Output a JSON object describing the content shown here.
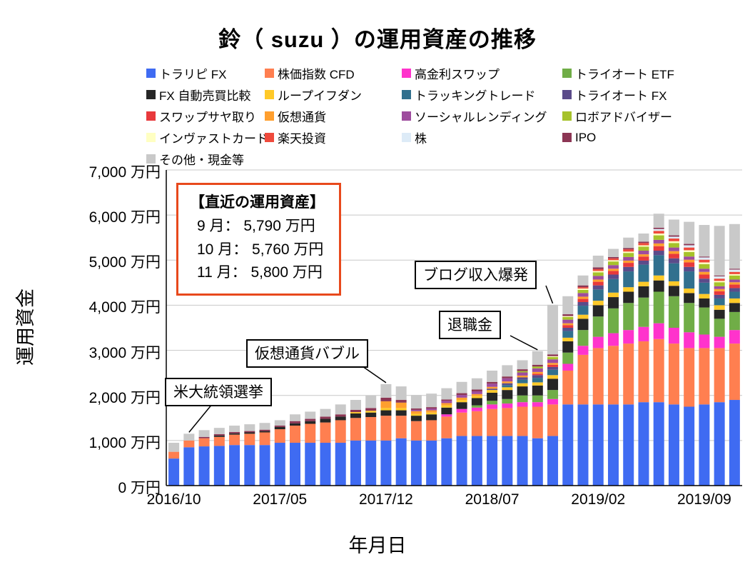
{
  "page": {
    "title": "鈴（ suzu ）の運用資産の推移"
  },
  "chart_data": {
    "type": "bar",
    "stacked": true,
    "title": "鈴（ suzu ）の運用資産の推移",
    "xlabel": "年月日",
    "ylabel": "運用資金",
    "ylim": [
      0,
      7000
    ],
    "ytick_step": 1000,
    "ytick_labels": [
      "0 万円",
      "1,000 万円",
      "2,000 万円",
      "3,000 万円",
      "4,000 万円",
      "5,000 万円",
      "6,000 万円",
      "7,000 万円"
    ],
    "xtick_labels": [
      "2016/10",
      "2017/05",
      "2017/12",
      "2018/07",
      "2019/02",
      "2019/09"
    ],
    "xtick_indices": [
      0,
      7,
      14,
      21,
      28,
      35
    ],
    "grid": true,
    "legend_position": "top",
    "categories": [
      "2016/10",
      "2016/11",
      "2016/12",
      "2017/01",
      "2017/02",
      "2017/03",
      "2017/04",
      "2017/05",
      "2017/06",
      "2017/07",
      "2017/08",
      "2017/09",
      "2017/10",
      "2017/11",
      "2017/12",
      "2018/01",
      "2018/02",
      "2018/03",
      "2018/04",
      "2018/05",
      "2018/06",
      "2018/07",
      "2018/08",
      "2018/09",
      "2018/10",
      "2018/11",
      "2018/12",
      "2019/01",
      "2019/02",
      "2019/03",
      "2019/04",
      "2019/05",
      "2019/06",
      "2019/07",
      "2019/08",
      "2019/09",
      "2019/10",
      "2019/11"
    ],
    "series": [
      {
        "name": "トラリピ FX",
        "color": "#3F6BF2",
        "values": [
          600,
          850,
          870,
          880,
          900,
          900,
          900,
          950,
          950,
          950,
          950,
          950,
          1000,
          1000,
          1000,
          1050,
          1000,
          1000,
          1050,
          1100,
          1100,
          1100,
          1100,
          1100,
          1050,
          1100,
          1800,
          1800,
          1800,
          1800,
          1800,
          1850,
          1850,
          1800,
          1750,
          1800,
          1850,
          1900
        ]
      },
      {
        "name": "株価指数 CFD",
        "color": "#FF7F50",
        "values": [
          150,
          150,
          180,
          200,
          230,
          250,
          280,
          300,
          380,
          420,
          450,
          500,
          500,
          520,
          550,
          500,
          430,
          450,
          480,
          520,
          550,
          600,
          620,
          650,
          700,
          700,
          750,
          1100,
          1250,
          1300,
          1350,
          1350,
          1400,
          1350,
          1300,
          1250,
          1200,
          1250
        ]
      },
      {
        "name": "高金利スワップ",
        "color": "#FF33CC",
        "values": [
          0,
          0,
          0,
          0,
          0,
          0,
          0,
          0,
          0,
          0,
          0,
          0,
          0,
          0,
          0,
          0,
          0,
          0,
          50,
          80,
          80,
          100,
          100,
          100,
          100,
          120,
          150,
          200,
          250,
          280,
          300,
          320,
          350,
          350,
          350,
          300,
          250,
          300
        ]
      },
      {
        "name": "トライオート ETF",
        "color": "#70AD47",
        "values": [
          0,
          0,
          0,
          0,
          0,
          0,
          0,
          0,
          0,
          0,
          0,
          0,
          0,
          0,
          0,
          0,
          0,
          0,
          0,
          0,
          50,
          80,
          100,
          150,
          150,
          200,
          250,
          350,
          450,
          550,
          600,
          650,
          700,
          700,
          650,
          600,
          400,
          400
        ]
      },
      {
        "name": "FX 自動売買比較",
        "color": "#262626",
        "values": [
          0,
          0,
          0,
          30,
          30,
          30,
          30,
          50,
          50,
          60,
          80,
          80,
          100,
          100,
          120,
          120,
          120,
          130,
          150,
          150,
          160,
          180,
          200,
          200,
          220,
          250,
          250,
          250,
          250,
          250,
          250,
          250,
          250,
          230,
          220,
          200,
          200,
          200
        ]
      },
      {
        "name": "ループイフダン",
        "color": "#FFC928",
        "values": [
          0,
          0,
          0,
          0,
          0,
          0,
          0,
          0,
          0,
          0,
          0,
          0,
          30,
          40,
          50,
          50,
          40,
          40,
          50,
          50,
          50,
          60,
          60,
          70,
          70,
          80,
          80,
          90,
          100,
          100,
          100,
          100,
          110,
          100,
          100,
          100,
          100,
          100
        ]
      },
      {
        "name": "トラッキングトレード",
        "color": "#31708E",
        "values": [
          0,
          0,
          0,
          0,
          0,
          0,
          0,
          0,
          0,
          0,
          0,
          0,
          0,
          0,
          0,
          0,
          0,
          0,
          0,
          0,
          0,
          0,
          50,
          80,
          100,
          120,
          150,
          200,
          250,
          300,
          350,
          380,
          450,
          400,
          380,
          250,
          150,
          150
        ]
      },
      {
        "name": "トライオート FX",
        "color": "#5B4B8A",
        "values": [
          0,
          0,
          0,
          0,
          0,
          0,
          0,
          0,
          0,
          0,
          0,
          0,
          0,
          0,
          0,
          0,
          0,
          0,
          0,
          0,
          0,
          30,
          40,
          50,
          60,
          60,
          70,
          80,
          90,
          100,
          100,
          90,
          100,
          110,
          100,
          90,
          80,
          80
        ]
      },
      {
        "name": "スワップサヤ取り",
        "color": "#E8393C",
        "values": [
          0,
          0,
          0,
          0,
          0,
          0,
          0,
          0,
          0,
          0,
          0,
          0,
          0,
          0,
          0,
          0,
          0,
          0,
          0,
          0,
          0,
          0,
          0,
          0,
          30,
          50,
          60,
          70,
          80,
          80,
          90,
          90,
          100,
          100,
          100,
          90,
          80,
          80
        ]
      },
      {
        "name": "仮想通貨",
        "color": "#FF9F2E",
        "values": [
          0,
          0,
          0,
          0,
          0,
          0,
          0,
          0,
          0,
          0,
          0,
          0,
          0,
          0,
          150,
          120,
          60,
          50,
          50,
          50,
          40,
          40,
          40,
          40,
          40,
          40,
          40,
          50,
          50,
          50,
          50,
          50,
          60,
          60,
          60,
          60,
          50,
          50
        ]
      },
      {
        "name": "ソーシャルレンディング",
        "color": "#9E4C9E",
        "values": [
          0,
          0,
          0,
          0,
          0,
          0,
          0,
          0,
          0,
          0,
          0,
          0,
          0,
          0,
          0,
          0,
          30,
          40,
          50,
          60,
          60,
          70,
          70,
          70,
          80,
          80,
          80,
          80,
          80,
          80,
          80,
          80,
          80,
          80,
          70,
          70,
          60,
          60
        ]
      },
      {
        "name": "ロボアドバイザー",
        "color": "#A6C22B",
        "values": [
          0,
          0,
          0,
          0,
          0,
          0,
          0,
          0,
          0,
          0,
          0,
          0,
          0,
          0,
          0,
          0,
          0,
          0,
          0,
          0,
          0,
          0,
          0,
          30,
          40,
          50,
          60,
          70,
          80,
          80,
          90,
          90,
          100,
          100,
          100,
          100,
          90,
          90
        ]
      },
      {
        "name": "インヴァストカード",
        "color": "#FFFFC2",
        "values": [
          0,
          0,
          0,
          0,
          0,
          0,
          0,
          0,
          0,
          0,
          0,
          0,
          0,
          0,
          0,
          0,
          0,
          0,
          0,
          0,
          0,
          0,
          0,
          0,
          0,
          20,
          20,
          30,
          30,
          30,
          30,
          30,
          40,
          40,
          40,
          40,
          30,
          30
        ]
      },
      {
        "name": "楽天投資",
        "color": "#EF4A3C",
        "values": [
          0,
          0,
          0,
          0,
          0,
          0,
          0,
          0,
          0,
          0,
          0,
          0,
          0,
          0,
          0,
          0,
          0,
          0,
          0,
          0,
          0,
          0,
          0,
          0,
          0,
          0,
          0,
          30,
          40,
          40,
          50,
          50,
          60,
          60,
          60,
          60,
          50,
          50
        ]
      },
      {
        "name": "株",
        "color": "#DDEBF7",
        "values": [
          0,
          0,
          0,
          0,
          0,
          0,
          0,
          0,
          0,
          0,
          0,
          0,
          0,
          0,
          0,
          0,
          0,
          0,
          0,
          0,
          0,
          0,
          0,
          0,
          0,
          0,
          0,
          0,
          0,
          0,
          0,
          0,
          40,
          40,
          50,
          50,
          50,
          50
        ]
      },
      {
        "name": "IPO",
        "color": "#8C3654",
        "values": [
          0,
          0,
          30,
          30,
          30,
          30,
          30,
          30,
          50,
          50,
          50,
          50,
          50,
          60,
          80,
          60,
          30,
          30,
          30,
          40,
          40,
          40,
          40,
          40,
          40,
          40,
          40,
          40,
          40,
          30,
          30,
          30,
          30,
          30,
          30,
          20,
          20,
          20
        ]
      },
      {
        "name": "その他・現金等",
        "color": "#C9C9C9",
        "values": [
          200,
          150,
          150,
          140,
          140,
          150,
          150,
          120,
          150,
          160,
          170,
          220,
          220,
          280,
          300,
          300,
          300,
          300,
          250,
          250,
          250,
          250,
          250,
          200,
          300,
          1100,
          400,
          220,
          260,
          180,
          230,
          180,
          310,
          350,
          490,
          700,
          1100,
          990
        ]
      }
    ]
  },
  "annotations": {
    "recent_box": {
      "title": "【直近の運用資産】",
      "lines": [
        "9 月：  5,790 万円",
        "10 月：  5,760 万円",
        "11 月：  5,800 万円"
      ],
      "border_color": "#E8491C"
    },
    "callouts": [
      {
        "label": "米大統領選挙",
        "target_month": "2016/11",
        "target_index": 1
      },
      {
        "label": "仮想通貨バブル",
        "target_month": "2017/12",
        "target_index": 14
      },
      {
        "label": "退職金",
        "target_month": "2018/10",
        "target_index": 24
      },
      {
        "label": "ブログ収入爆発",
        "target_month": "2018/11",
        "target_index": 25
      }
    ]
  }
}
